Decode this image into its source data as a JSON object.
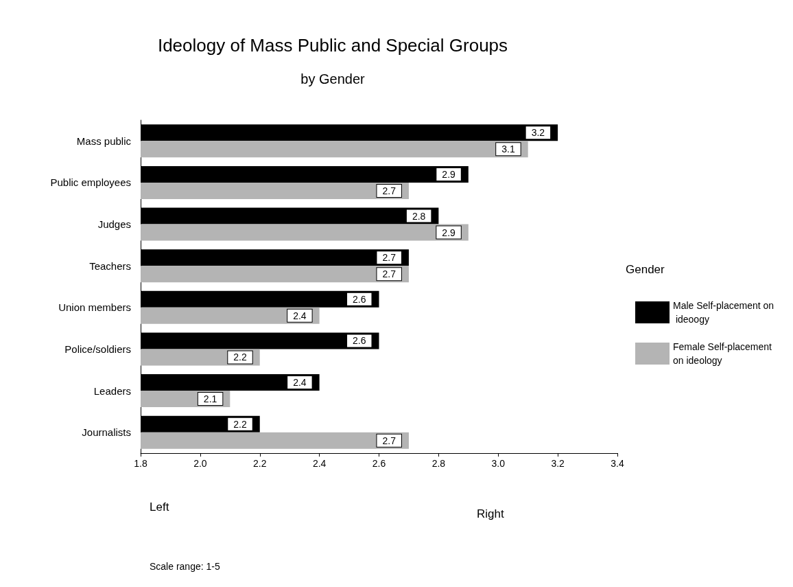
{
  "chart_data": {
    "type": "bar",
    "orientation": "horizontal",
    "title": "Ideology of Mass Public and Special Groups",
    "subtitle": "by Gender",
    "legend_title": "Gender",
    "categories": [
      "Mass public",
      "Public employees",
      "Judges",
      "Teachers",
      "Union members",
      "Police/soldiers",
      "Leaders",
      "Journalists"
    ],
    "series": [
      {
        "name": "Male Self-placement on ideoogy",
        "color": "#000000",
        "values": [
          3.2,
          2.9,
          2.8,
          2.7,
          2.6,
          2.6,
          2.4,
          2.2
        ]
      },
      {
        "name": "Female Self-placement on ideology",
        "color": "#b4b4b4",
        "values": [
          3.1,
          2.7,
          2.9,
          2.7,
          2.4,
          2.2,
          2.1,
          2.7
        ]
      }
    ],
    "xlim": [
      1.8,
      3.4
    ],
    "xticks": [
      1.8,
      {
        "value": 2,
        "label": "2.0"
      },
      2.2,
      2.4,
      2.6,
      2.8,
      {
        "value": 3,
        "label": "3.0"
      },
      3.2,
      3.4
    ],
    "data_labels": true,
    "legend": "right",
    "grid": false,
    "annotations": [
      "Left",
      "Right",
      "Scale range: 1-5"
    ]
  }
}
